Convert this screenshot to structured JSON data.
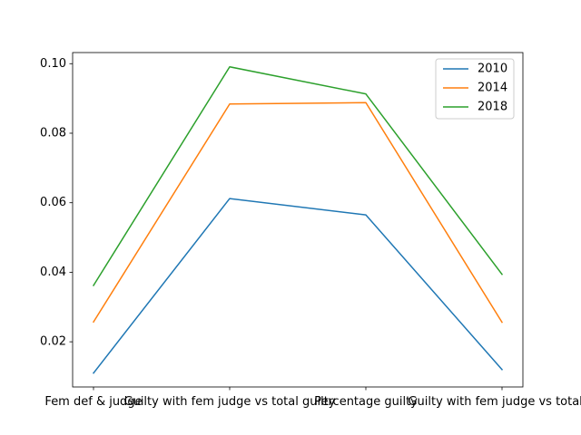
{
  "chart_data": {
    "type": "line",
    "title": "",
    "xlabel": "",
    "ylabel": "",
    "categories": [
      "Fem def & judge",
      "Guilty with fem judge vs total guilty",
      "Percentage guilty",
      "Guilty with fem judge vs total w"
    ],
    "series": [
      {
        "name": "2010",
        "color": "#1f77b4",
        "values": [
          0.011,
          0.0612,
          0.0565,
          0.012
        ]
      },
      {
        "name": "2014",
        "color": "#ff7f0e",
        "values": [
          0.0257,
          0.0884,
          0.0888,
          0.0256
        ]
      },
      {
        "name": "2018",
        "color": "#2ca02c",
        "values": [
          0.0362,
          0.0991,
          0.0913,
          0.0394
        ]
      }
    ],
    "ylim": [
      0.007,
      0.1032
    ],
    "yticks": [
      0.02,
      0.04,
      0.06,
      0.08,
      0.1
    ],
    "ytick_labels": [
      "0.02",
      "0.04",
      "0.06",
      "0.08",
      "0.10"
    ],
    "grid": false,
    "legend_position": "top-right"
  }
}
